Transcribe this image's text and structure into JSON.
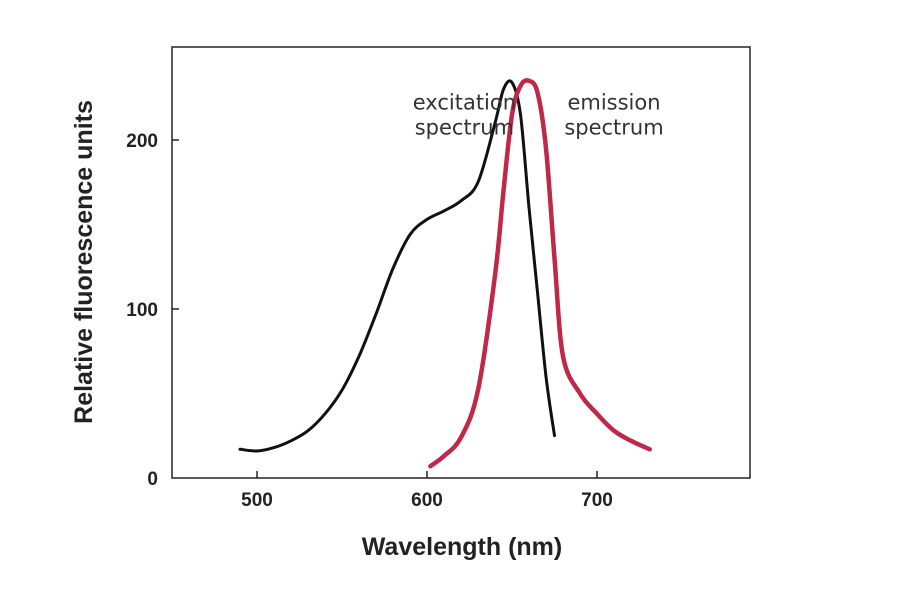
{
  "chart_data": {
    "type": "line",
    "title": "",
    "xlabel": "Wavelength (nm)",
    "ylabel": "Relative fluorescence units",
    "xlim": [
      450,
      790
    ],
    "ylim": [
      0,
      255
    ],
    "xticks": [
      500,
      600,
      700
    ],
    "yticks": [
      0,
      100,
      200
    ],
    "grid": false,
    "legend": "none",
    "series": [
      {
        "name": "excitation spectrum",
        "color": "#111111",
        "x": [
          490,
          500,
          510,
          520,
          530,
          540,
          550,
          560,
          570,
          580,
          590,
          600,
          610,
          620,
          630,
          640,
          645,
          650,
          655,
          660,
          665,
          670,
          675
        ],
        "y": [
          17,
          16,
          18,
          22,
          28,
          38,
          52,
          72,
          97,
          124,
          144,
          153,
          158,
          164,
          175,
          210,
          230,
          234,
          215,
          160,
          110,
          60,
          25
        ]
      },
      {
        "name": "emission spectrum",
        "color": "#c0284a",
        "x": [
          602,
          610,
          620,
          630,
          640,
          645,
          650,
          655,
          660,
          665,
          670,
          675,
          680,
          690,
          700,
          710,
          720,
          731
        ],
        "y": [
          7,
          13,
          24,
          52,
          120,
          170,
          215,
          232,
          235,
          228,
          195,
          130,
          72,
          50,
          38,
          28,
          22,
          17
        ]
      }
    ],
    "annotations": [
      {
        "lines": [
          "excitation",
          "spectrum"
        ],
        "at_x": 622,
        "at_y": 218
      },
      {
        "lines": [
          "emission",
          "spectrum"
        ],
        "at_x": 710,
        "at_y": 218
      }
    ]
  }
}
